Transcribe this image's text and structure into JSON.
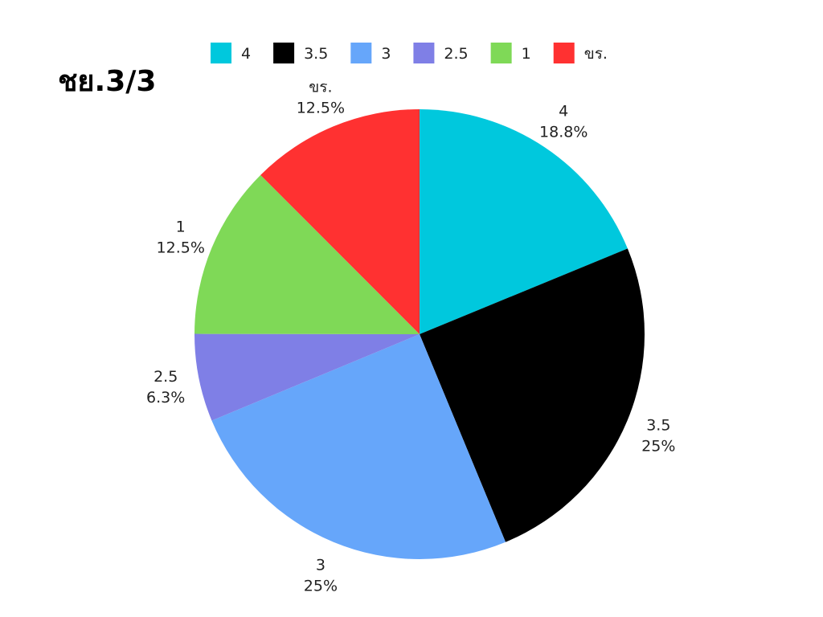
{
  "chart_data": {
    "type": "pie",
    "title": "ชย.3/3",
    "legend_position": "top",
    "slices": [
      {
        "label": "4",
        "value": 18.8,
        "display": "18.8%",
        "color": "#00C8DD"
      },
      {
        "label": "3.5",
        "value": 25,
        "display": "25%",
        "color": "#000000"
      },
      {
        "label": "3",
        "value": 25,
        "display": "25%",
        "color": "#66A6FA"
      },
      {
        "label": "2.5",
        "value": 6.3,
        "display": "6.3%",
        "color": "#7F7FE6"
      },
      {
        "label": "1",
        "value": 12.5,
        "display": "12.5%",
        "color": "#7FD957"
      },
      {
        "label": "ขร.",
        "value": 12.5,
        "display": "12.5%",
        "color": "#FF3131"
      }
    ]
  }
}
